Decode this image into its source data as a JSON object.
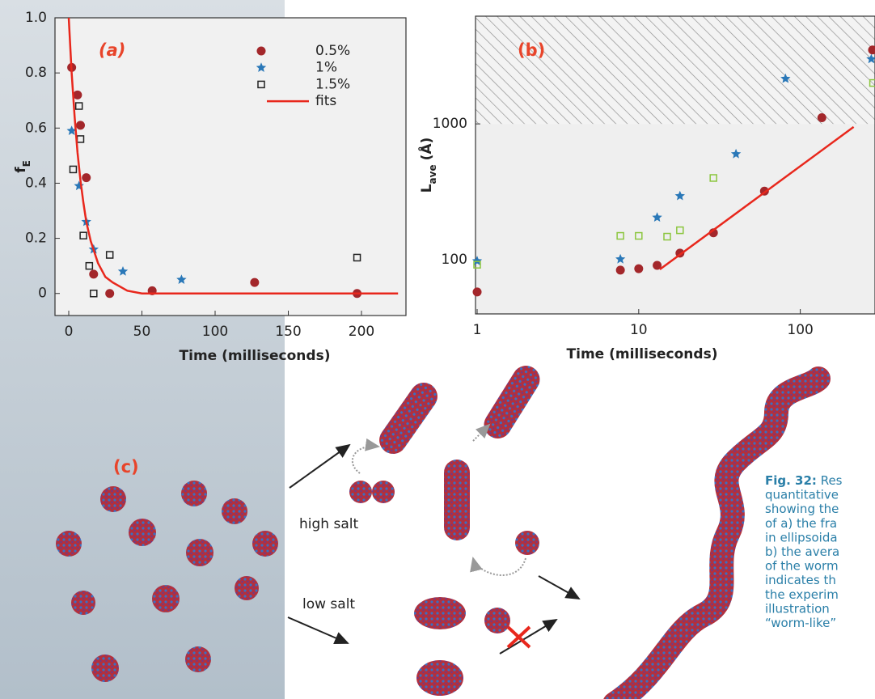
{
  "chart_data": [
    {
      "type": "scatter",
      "panel_label": "(a)",
      "ylabel": "f",
      "ylabel_sub": "E",
      "xlabel": "Time (milliseconds)",
      "xlim": [
        -9.4,
        230.4
      ],
      "ylim": [
        -0.08,
        1.0
      ],
      "xticks": [
        0,
        50,
        100,
        150,
        200
      ],
      "yticks": [
        0,
        0.2,
        0.4,
        0.6,
        0.8,
        {
          "value": 1,
          "label": "1.0"
        }
      ],
      "legend": "upper right",
      "series": [
        {
          "name": "0.5%",
          "marker": "circle",
          "color": "#a3272b",
          "x": [
            2,
            6,
            8,
            12,
            17,
            28,
            57,
            127,
            197
          ],
          "values": [
            0.82,
            0.72,
            0.61,
            0.42,
            0.07,
            0.0,
            0.01,
            0.04,
            0.0
          ]
        },
        {
          "name": "1%",
          "marker": "star",
          "color": "#2a78b8",
          "x": [
            2,
            7,
            12,
            17,
            37,
            77
          ],
          "values": [
            0.59,
            0.39,
            0.26,
            0.16,
            0.08,
            0.05
          ]
        },
        {
          "name": "1.5%",
          "marker": "square",
          "color": "#222222",
          "x": [
            3,
            7,
            8,
            10,
            14,
            17,
            28,
            197
          ],
          "values": [
            0.45,
            0.68,
            0.56,
            0.21,
            0.1,
            0.0,
            0.14,
            0.13
          ]
        },
        {
          "name": "fits",
          "marker": "line",
          "color": "#e8271c",
          "x": [
            0,
            2,
            4,
            6,
            8,
            10,
            12,
            15,
            20,
            25,
            30,
            40,
            50,
            75,
            100,
            150,
            200,
            225
          ],
          "values": [
            1.0,
            0.8,
            0.64,
            0.51,
            0.41,
            0.33,
            0.26,
            0.19,
            0.11,
            0.06,
            0.04,
            0.01,
            0.0,
            0.0,
            0.0,
            0.0,
            0.0,
            0.0
          ]
        }
      ]
    },
    {
      "type": "scatter",
      "panel_label": "(b)",
      "xlog": true,
      "ylog": true,
      "ylabel": "L",
      "ylabel_sub": "ave",
      "ylabel_unit": "(Å)",
      "xlabel": "Time (milliseconds)",
      "xlim": [
        0.977,
        290
      ],
      "ylim": [
        40,
        6200
      ],
      "xticks": [
        1,
        10,
        100
      ],
      "yticks": [
        100,
        1000
      ],
      "shaded_above": 1000,
      "series": [
        {
          "marker": "circle",
          "color": "#a3272b",
          "x": [
            1,
            7.7,
            10,
            13,
            18,
            29,
            60,
            136,
            280
          ],
          "values": [
            58,
            84,
            86,
            91,
            112,
            158,
            320,
            1110,
            3500
          ]
        },
        {
          "marker": "star",
          "color": "#2a78b8",
          "x": [
            1,
            7.7,
            13,
            18,
            40,
            81,
            275
          ],
          "values": [
            98,
            101,
            205,
            295,
            600,
            2150,
            3000
          ]
        },
        {
          "marker": "square",
          "color": "#8cc63f",
          "x": [
            1,
            7.7,
            10,
            15,
            18,
            29,
            282
          ],
          "values": [
            92,
            150,
            150,
            148,
            165,
            400,
            2000
          ]
        },
        {
          "marker": "line",
          "color": "#e8271c",
          "x": [
            13.5,
            214
          ],
          "values": [
            85,
            950
          ]
        }
      ]
    }
  ],
  "illustration": {
    "panel_label": "(c)",
    "high_label": "high salt",
    "low_label": "low salt"
  },
  "caption": {
    "lead": "Fig. 32:",
    "lines": [
      " Res",
      "quantitative",
      "showing the",
      "of a) the fra",
      "in ellipsoida",
      "b) the avera",
      "of the worm",
      "indicates th",
      "the experim",
      "illustration",
      "“worm-like”"
    ]
  }
}
